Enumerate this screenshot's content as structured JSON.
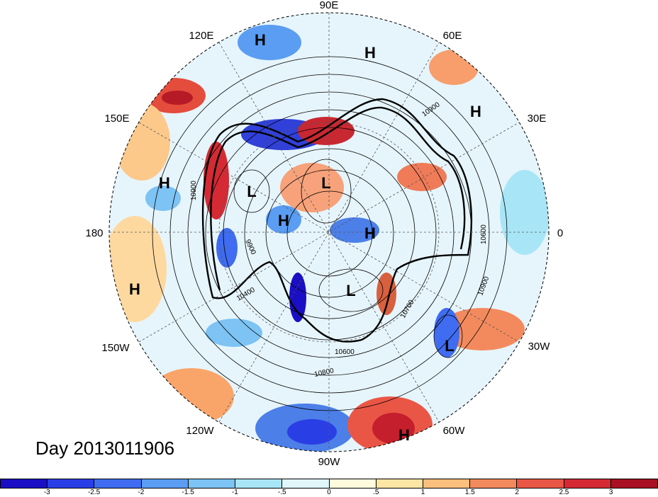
{
  "map": {
    "longitude_labels": [
      "90E",
      "60E",
      "30E",
      "0",
      "30W",
      "60W",
      "90W",
      "120W",
      "150W",
      "180",
      "150E",
      "120E"
    ],
    "pressure_systems": [
      {
        "type": "H",
        "region": "Siberia north"
      },
      {
        "type": "H",
        "region": "Central Asia"
      },
      {
        "type": "H",
        "region": "North Africa"
      },
      {
        "type": "H",
        "region": "West Pacific"
      },
      {
        "type": "L",
        "region": "Arctic (Siberian side)"
      },
      {
        "type": "L",
        "region": "East Siberia"
      },
      {
        "type": "H",
        "region": "Beaufort Sea"
      },
      {
        "type": "H",
        "region": "Greenland"
      },
      {
        "type": "L",
        "region": "Hudson Bay"
      },
      {
        "type": "H",
        "region": "Central Pacific"
      },
      {
        "type": "L",
        "region": "Subtropical Atlantic"
      },
      {
        "type": "H",
        "region": "South America"
      }
    ],
    "contour_labels": [
      "10900",
      "10900",
      "9900",
      "10400",
      "10600",
      "10600",
      "10700",
      "10800",
      "10900",
      "10600"
    ]
  },
  "title": "Day 2013011906",
  "colorbar": {
    "colors": [
      "#1a0fc4",
      "#2a3ee6",
      "#3f6cf0",
      "#5a9df2",
      "#7dc3f4",
      "#a8e6f7",
      "#dff6fb",
      "#fefbdc",
      "#fde5a3",
      "#fbbf7e",
      "#f38a5e",
      "#ea5646",
      "#d52a34",
      "#a80f22"
    ],
    "tick_labels": [
      "-3",
      "-2.5",
      "-2",
      "-1.5",
      "-1",
      "-.5",
      "0",
      ".5",
      "1",
      "1.5",
      "2",
      "2.5",
      "3"
    ]
  }
}
